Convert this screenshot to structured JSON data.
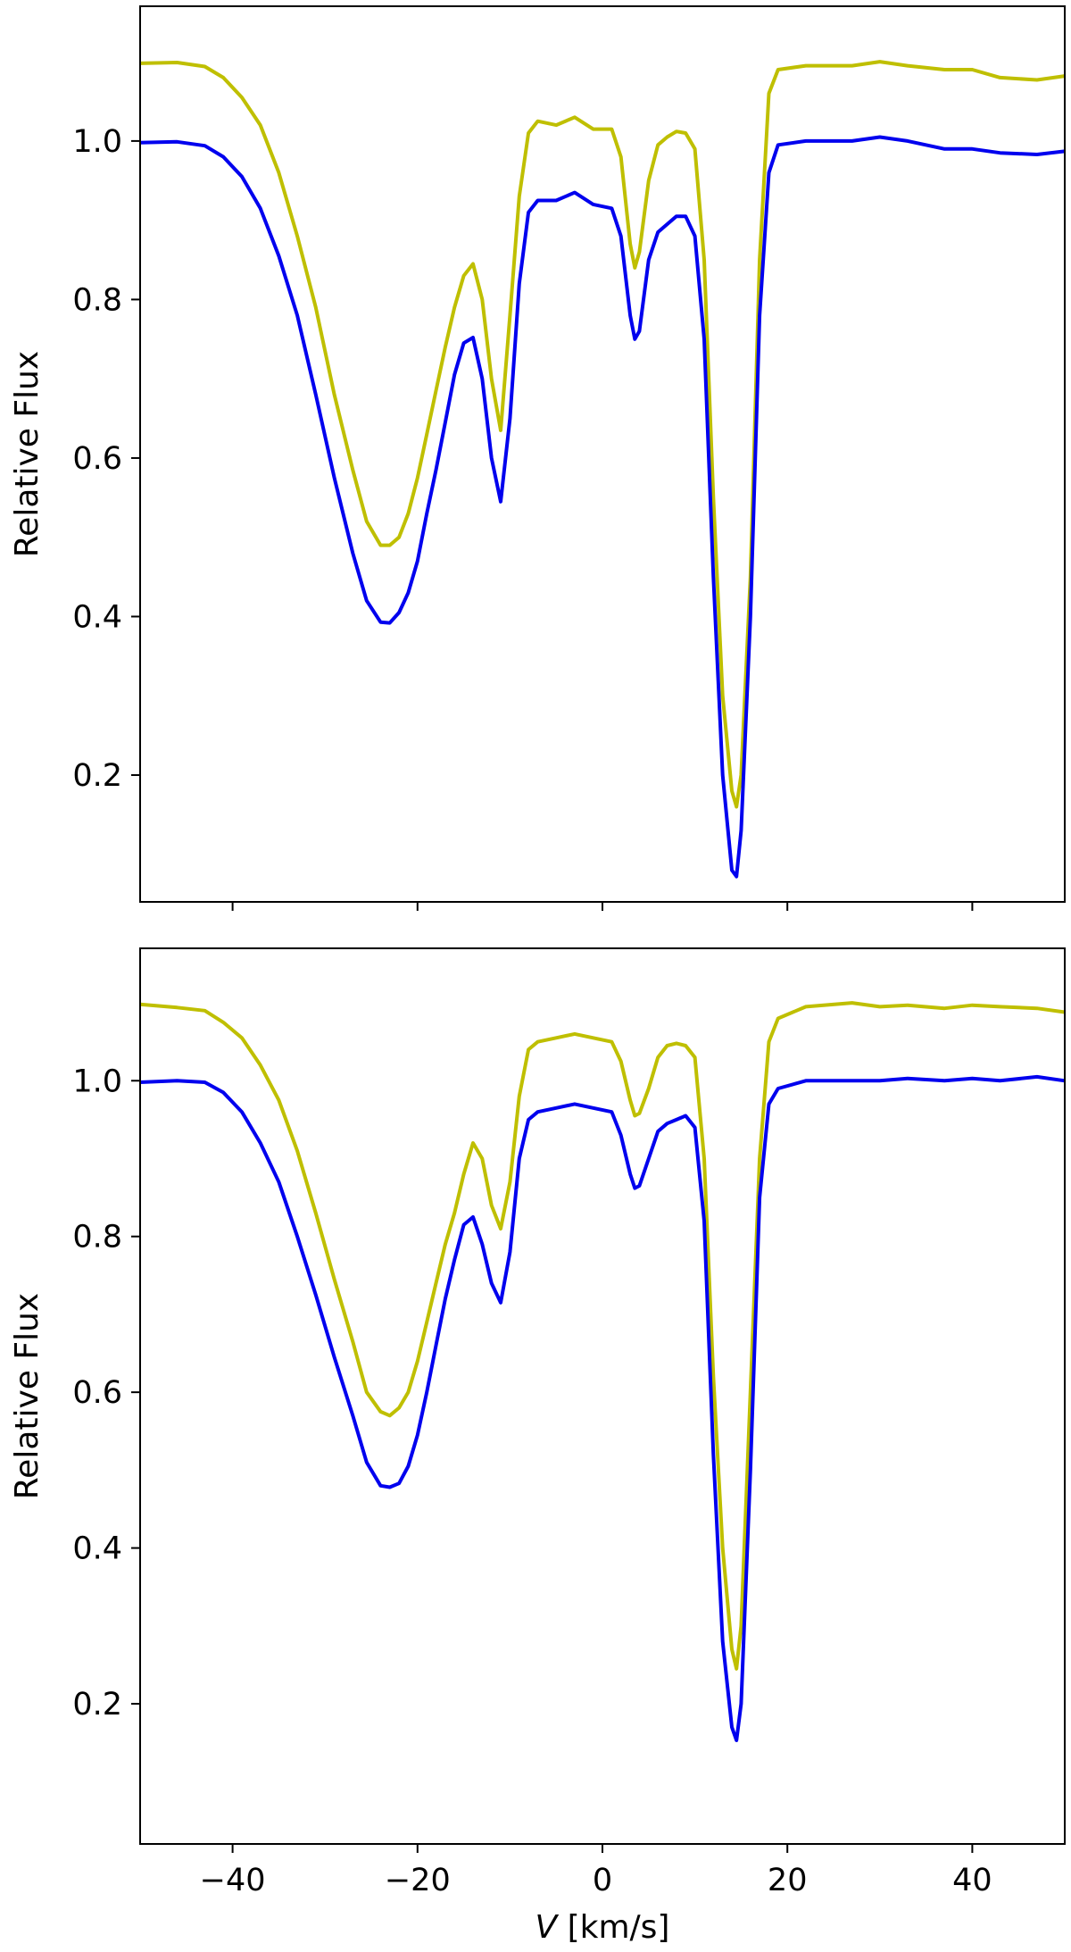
{
  "chart_data": [
    {
      "type": "line",
      "panel": "top",
      "xlim": [
        -50,
        50
      ],
      "ylim": [
        0.04,
        1.17
      ],
      "xticks": [
        -40,
        -20,
        0,
        20,
        40
      ],
      "yticks": [
        0.2,
        0.4,
        0.6,
        0.8,
        1.0
      ],
      "ytick_labels": [
        "0.2",
        "0.4",
        "0.6",
        "0.8",
        "1.0"
      ],
      "xtick_labels_visible": false,
      "ylabel": "Relative Flux",
      "xlabel": "",
      "grid": false,
      "legend": null,
      "series": [
        {
          "color": "#bfbf00",
          "points": [
            [
              -50,
              1.098
            ],
            [
              -46,
              1.099
            ],
            [
              -43,
              1.094
            ],
            [
              -41,
              1.08
            ],
            [
              -39,
              1.055
            ],
            [
              -37,
              1.02
            ],
            [
              -35,
              0.96
            ],
            [
              -33,
              0.88
            ],
            [
              -31,
              0.79
            ],
            [
              -29,
              0.68
            ],
            [
              -27,
              0.585
            ],
            [
              -25.5,
              0.52
            ],
            [
              -24,
              0.49
            ],
            [
              -23,
              0.49
            ],
            [
              -22,
              0.5
            ],
            [
              -21,
              0.53
            ],
            [
              -20,
              0.575
            ],
            [
              -19,
              0.63
            ],
            [
              -18,
              0.685
            ],
            [
              -17,
              0.74
            ],
            [
              -16,
              0.79
            ],
            [
              -15,
              0.83
            ],
            [
              -14,
              0.845
            ],
            [
              -13,
              0.8
            ],
            [
              -12,
              0.7
            ],
            [
              -11,
              0.635
            ],
            [
              -10,
              0.78
            ],
            [
              -9,
              0.93
            ],
            [
              -8,
              1.01
            ],
            [
              -7,
              1.025
            ],
            [
              -5,
              1.02
            ],
            [
              -3,
              1.03
            ],
            [
              -1,
              1.015
            ],
            [
              1,
              1.015
            ],
            [
              2,
              0.98
            ],
            [
              3,
              0.87
            ],
            [
              3.5,
              0.84
            ],
            [
              4,
              0.86
            ],
            [
              5,
              0.95
            ],
            [
              6,
              0.995
            ],
            [
              7,
              1.005
            ],
            [
              8,
              1.012
            ],
            [
              9,
              1.01
            ],
            [
              10,
              0.99
            ],
            [
              11,
              0.85
            ],
            [
              12,
              0.55
            ],
            [
              13,
              0.3
            ],
            [
              14,
              0.18
            ],
            [
              14.5,
              0.16
            ],
            [
              15,
              0.2
            ],
            [
              16,
              0.45
            ],
            [
              17,
              0.85
            ],
            [
              18,
              1.06
            ],
            [
              19,
              1.09
            ],
            [
              22,
              1.095
            ],
            [
              27,
              1.095
            ],
            [
              30,
              1.1
            ],
            [
              33,
              1.095
            ],
            [
              37,
              1.09
            ],
            [
              40,
              1.09
            ],
            [
              43,
              1.08
            ],
            [
              47,
              1.077
            ],
            [
              50,
              1.082
            ]
          ]
        },
        {
          "color": "#0000ee",
          "points": [
            [
              -50,
              0.998
            ],
            [
              -46,
              0.999
            ],
            [
              -43,
              0.994
            ],
            [
              -41,
              0.98
            ],
            [
              -39,
              0.955
            ],
            [
              -37,
              0.915
            ],
            [
              -35,
              0.855
            ],
            [
              -33,
              0.78
            ],
            [
              -31,
              0.68
            ],
            [
              -29,
              0.575
            ],
            [
              -27,
              0.48
            ],
            [
              -25.5,
              0.42
            ],
            [
              -24,
              0.393
            ],
            [
              -23,
              0.392
            ],
            [
              -22,
              0.405
            ],
            [
              -21,
              0.43
            ],
            [
              -20,
              0.47
            ],
            [
              -19,
              0.53
            ],
            [
              -18,
              0.585
            ],
            [
              -17,
              0.645
            ],
            [
              -16,
              0.705
            ],
            [
              -15,
              0.745
            ],
            [
              -14,
              0.752
            ],
            [
              -13,
              0.7
            ],
            [
              -12,
              0.6
            ],
            [
              -11,
              0.545
            ],
            [
              -10,
              0.65
            ],
            [
              -9,
              0.82
            ],
            [
              -8,
              0.91
            ],
            [
              -7,
              0.925
            ],
            [
              -5,
              0.925
            ],
            [
              -3,
              0.935
            ],
            [
              -1,
              0.92
            ],
            [
              1,
              0.915
            ],
            [
              2,
              0.88
            ],
            [
              3,
              0.78
            ],
            [
              3.5,
              0.75
            ],
            [
              4,
              0.76
            ],
            [
              5,
              0.85
            ],
            [
              6,
              0.885
            ],
            [
              7,
              0.895
            ],
            [
              8,
              0.905
            ],
            [
              9,
              0.905
            ],
            [
              10,
              0.88
            ],
            [
              11,
              0.75
            ],
            [
              12,
              0.45
            ],
            [
              13,
              0.2
            ],
            [
              14,
              0.08
            ],
            [
              14.5,
              0.072
            ],
            [
              15,
              0.13
            ],
            [
              16,
              0.4
            ],
            [
              17,
              0.78
            ],
            [
              18,
              0.96
            ],
            [
              19,
              0.995
            ],
            [
              22,
              1.0
            ],
            [
              27,
              1.0
            ],
            [
              30,
              1.005
            ],
            [
              33,
              1.0
            ],
            [
              37,
              0.99
            ],
            [
              40,
              0.99
            ],
            [
              43,
              0.985
            ],
            [
              47,
              0.983
            ],
            [
              50,
              0.987
            ]
          ]
        }
      ]
    },
    {
      "type": "line",
      "panel": "bottom",
      "xlim": [
        -50,
        50
      ],
      "ylim": [
        0.02,
        1.17
      ],
      "xticks": [
        -40,
        -20,
        0,
        20,
        40
      ],
      "xtick_labels": [
        "−40",
        "−20",
        "0",
        "20",
        "40"
      ],
      "yticks": [
        0.2,
        0.4,
        0.6,
        0.8,
        1.0
      ],
      "ytick_labels": [
        "0.2",
        "0.4",
        "0.6",
        "0.8",
        "1.0"
      ],
      "ylabel": "Relative Flux",
      "xlabel_var": "V",
      "xlabel_unit": " [km/s]",
      "grid": false,
      "legend": null,
      "series": [
        {
          "color": "#bfbf00",
          "points": [
            [
              -50,
              1.098
            ],
            [
              -46,
              1.094
            ],
            [
              -43,
              1.09
            ],
            [
              -41,
              1.075
            ],
            [
              -39,
              1.055
            ],
            [
              -37,
              1.02
            ],
            [
              -35,
              0.975
            ],
            [
              -33,
              0.91
            ],
            [
              -31,
              0.83
            ],
            [
              -29,
              0.745
            ],
            [
              -27,
              0.665
            ],
            [
              -25.5,
              0.6
            ],
            [
              -24,
              0.575
            ],
            [
              -23,
              0.57
            ],
            [
              -22,
              0.58
            ],
            [
              -21,
              0.6
            ],
            [
              -20,
              0.64
            ],
            [
              -19,
              0.69
            ],
            [
              -18,
              0.74
            ],
            [
              -17,
              0.79
            ],
            [
              -16,
              0.83
            ],
            [
              -15,
              0.88
            ],
            [
              -14,
              0.92
            ],
            [
              -13,
              0.9
            ],
            [
              -12,
              0.84
            ],
            [
              -11,
              0.81
            ],
            [
              -10,
              0.87
            ],
            [
              -9,
              0.98
            ],
            [
              -8,
              1.04
            ],
            [
              -7,
              1.05
            ],
            [
              -5,
              1.055
            ],
            [
              -3,
              1.06
            ],
            [
              -1,
              1.055
            ],
            [
              1,
              1.05
            ],
            [
              2,
              1.025
            ],
            [
              3,
              0.975
            ],
            [
              3.5,
              0.955
            ],
            [
              4,
              0.958
            ],
            [
              5,
              0.99
            ],
            [
              6,
              1.03
            ],
            [
              7,
              1.045
            ],
            [
              8,
              1.048
            ],
            [
              9,
              1.045
            ],
            [
              10,
              1.03
            ],
            [
              11,
              0.9
            ],
            [
              12,
              0.62
            ],
            [
              13,
              0.4
            ],
            [
              14,
              0.27
            ],
            [
              14.5,
              0.245
            ],
            [
              15,
              0.3
            ],
            [
              16,
              0.6
            ],
            [
              17,
              0.9
            ],
            [
              18,
              1.05
            ],
            [
              19,
              1.08
            ],
            [
              22,
              1.095
            ],
            [
              27,
              1.1
            ],
            [
              30,
              1.095
            ],
            [
              33,
              1.097
            ],
            [
              37,
              1.093
            ],
            [
              40,
              1.097
            ],
            [
              43,
              1.095
            ],
            [
              47,
              1.093
            ],
            [
              50,
              1.088
            ]
          ]
        },
        {
          "color": "#0000ee",
          "points": [
            [
              -50,
              0.998
            ],
            [
              -46,
              1.0
            ],
            [
              -43,
              0.998
            ],
            [
              -41,
              0.985
            ],
            [
              -39,
              0.96
            ],
            [
              -37,
              0.92
            ],
            [
              -35,
              0.87
            ],
            [
              -33,
              0.8
            ],
            [
              -31,
              0.725
            ],
            [
              -29,
              0.645
            ],
            [
              -27,
              0.57
            ],
            [
              -25.5,
              0.51
            ],
            [
              -24,
              0.48
            ],
            [
              -23,
              0.478
            ],
            [
              -22,
              0.483
            ],
            [
              -21,
              0.505
            ],
            [
              -20,
              0.545
            ],
            [
              -19,
              0.6
            ],
            [
              -18,
              0.66
            ],
            [
              -17,
              0.72
            ],
            [
              -16,
              0.77
            ],
            [
              -15,
              0.815
            ],
            [
              -14,
              0.825
            ],
            [
              -13,
              0.79
            ],
            [
              -12,
              0.74
            ],
            [
              -11,
              0.715
            ],
            [
              -10,
              0.78
            ],
            [
              -9,
              0.9
            ],
            [
              -8,
              0.95
            ],
            [
              -7,
              0.96
            ],
            [
              -5,
              0.965
            ],
            [
              -3,
              0.97
            ],
            [
              -1,
              0.965
            ],
            [
              1,
              0.96
            ],
            [
              2,
              0.93
            ],
            [
              3,
              0.88
            ],
            [
              3.5,
              0.862
            ],
            [
              4,
              0.865
            ],
            [
              5,
              0.9
            ],
            [
              6,
              0.935
            ],
            [
              7,
              0.945
            ],
            [
              8,
              0.95
            ],
            [
              9,
              0.955
            ],
            [
              10,
              0.94
            ],
            [
              11,
              0.82
            ],
            [
              12,
              0.52
            ],
            [
              13,
              0.28
            ],
            [
              14,
              0.17
            ],
            [
              14.5,
              0.153
            ],
            [
              15,
              0.2
            ],
            [
              16,
              0.5
            ],
            [
              17,
              0.85
            ],
            [
              18,
              0.97
            ],
            [
              19,
              0.99
            ],
            [
              22,
              1.0
            ],
            [
              27,
              1.0
            ],
            [
              30,
              1.0
            ],
            [
              33,
              1.003
            ],
            [
              37,
              1.0
            ],
            [
              40,
              1.003
            ],
            [
              43,
              1.0
            ],
            [
              47,
              1.005
            ],
            [
              50,
              1.0
            ]
          ]
        }
      ]
    }
  ]
}
